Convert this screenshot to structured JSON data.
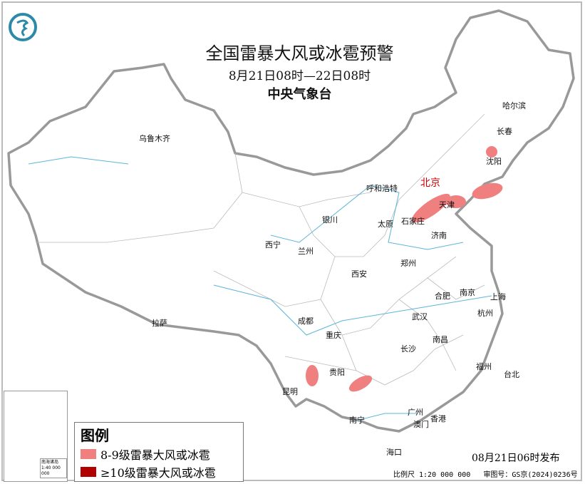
{
  "title": "全国雷暴大风或冰雹预警",
  "period": "8月21日08时—22日08时",
  "organization": "中央气象台",
  "logo_icon": "cma-logo",
  "capital": {
    "name": "北京",
    "color": "#cc0000"
  },
  "cities": [
    "乌鲁木齐",
    "哈尔滨",
    "长春",
    "沈阳",
    "呼和浩特",
    "天津",
    "石家庄",
    "太原",
    "济南",
    "银川",
    "西宁",
    "兰州",
    "郑州",
    "西安",
    "合肥",
    "南京",
    "上海",
    "杭州",
    "拉萨",
    "成都",
    "武汉",
    "重庆",
    "南昌",
    "长沙",
    "贵阳",
    "昆明",
    "福州",
    "台北",
    "南宁",
    "广州",
    "澳门",
    "香港",
    "海口"
  ],
  "legend": {
    "title": "图例",
    "items": [
      {
        "label": "8-9级雷暴大风或冰雹",
        "color": "#f08080"
      },
      {
        "label": "≥10级雷暴大风或冰雹",
        "color": "#b00000"
      }
    ]
  },
  "issue_time": "08月21日06时发布",
  "footer": {
    "scale": "比例尺 1:20 000 000",
    "approval": "审图号：GS京(2024)0236号"
  },
  "inset": {
    "label": "南海诸岛",
    "scale": "1:40 000 000"
  },
  "warning_regions": [
    "贵州西部",
    "贵州南部",
    "京津冀",
    "辽宁南部",
    "辽宁北部"
  ]
}
